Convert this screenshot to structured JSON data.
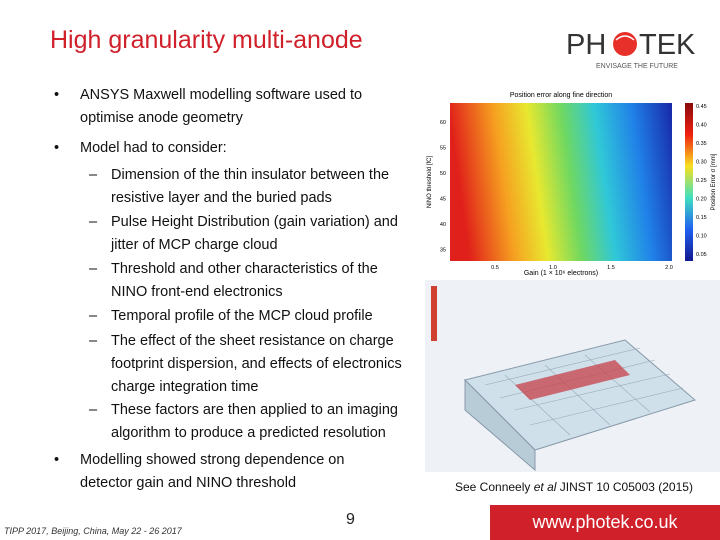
{
  "header": {
    "title": "High granularity multi-anode"
  },
  "logo": {
    "left": "PH",
    "right": "TEK",
    "tagline": "ENVISAGE THE FUTURE"
  },
  "bullets": [
    {
      "level": 1,
      "text": "ANSYS Maxwell modelling software used to optimise anode geometry"
    },
    {
      "level": 1,
      "text": "Model had to consider:"
    },
    {
      "level": 2,
      "text": "Dimension of the thin insulator between the resistive layer and the buried pads"
    },
    {
      "level": 2,
      "text": "Pulse Height Distribution (gain variation) and jitter of MCP charge cloud"
    },
    {
      "level": 2,
      "text": "Threshold and other characteristics of the NINO front-end electronics"
    },
    {
      "level": 2,
      "text": "Temporal profile of the MCP cloud profile"
    },
    {
      "level": 2,
      "text": "The effect of the sheet resistance on charge footprint dispersion, and effects of electronics charge integration time"
    },
    {
      "level": 2,
      "text": "These factors are then applied to an imaging algorithm to produce a predicted resolution"
    },
    {
      "level": 1,
      "text": "Modelling showed strong dependence on detector gain and NINO threshold"
    }
  ],
  "figure": {
    "title": "Position error along fine direction",
    "xlabel": "Gain (1 × 10⁶ electrons)",
    "ylabel": "NINO threshold [fC]",
    "colorbar_label": "Position Error σ [mm]",
    "yticks": [
      "60",
      "55",
      "50",
      "45",
      "40",
      "35"
    ],
    "xticks": [
      "0.5",
      "1.0",
      "1.5",
      "2.0"
    ],
    "colorbar_ticks": [
      "0.45",
      "0.40",
      "0.35",
      "0.30",
      "0.25",
      "0.20",
      "0.15",
      "0.10",
      "0.05"
    ]
  },
  "citation": {
    "before": "See Conneely ",
    "italic": "et al",
    "after": " JINST 10 C05003 (2015)"
  },
  "footer": {
    "conference": "TIPP 2017, Beijing, China, May 22 - 26 2017",
    "page": "9",
    "url": "www.photek.co.uk"
  }
}
